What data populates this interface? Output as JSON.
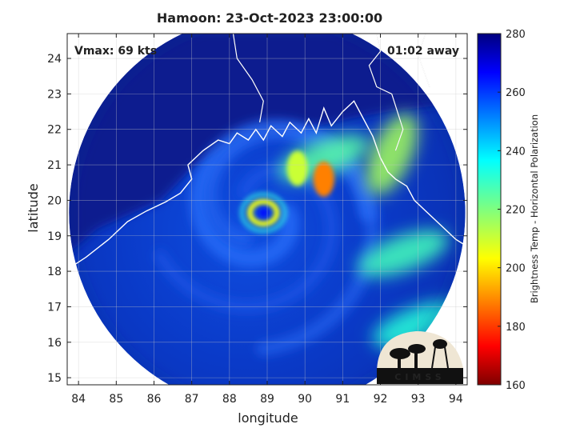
{
  "chart_data": {
    "type": "heatmap",
    "title": "Hamoon: 23-Oct-2023 23:00:00",
    "xlabel": "longitude",
    "ylabel": "latitude",
    "xlim": [
      83.7,
      94.3
    ],
    "ylim": [
      14.8,
      24.7
    ],
    "xticks": [
      84,
      85,
      86,
      87,
      88,
      89,
      90,
      91,
      92,
      93,
      94
    ],
    "yticks": [
      15,
      16,
      17,
      18,
      19,
      20,
      21,
      22,
      23,
      24
    ],
    "grid": true,
    "annotations": {
      "vmax": "Vmax: 69 kts",
      "time_away": "01:02 away"
    },
    "storm_center": {
      "lon": 88.9,
      "lat": 19.65
    },
    "scan_circle": {
      "center_lon": 89.0,
      "center_lat": 19.65,
      "radius_deg": 5.25
    },
    "colorbar": {
      "label": "Brightness Temp - Horizontal Polarization",
      "min": 160,
      "max": 280,
      "ticks": [
        160,
        180,
        200,
        220,
        240,
        260,
        280
      ]
    },
    "features": [
      {
        "kind": "warm-core",
        "lon": 88.9,
        "lat": 19.65,
        "temp": 265
      },
      {
        "kind": "eyewall",
        "lon": 88.9,
        "lat": 19.65,
        "temp": 205
      },
      {
        "kind": "convective-cell",
        "lon": 90.5,
        "lat": 20.6,
        "temp": 188
      },
      {
        "kind": "convective-cell",
        "lon": 89.8,
        "lat": 20.9,
        "temp": 210
      },
      {
        "kind": "rainband",
        "lon": 90.5,
        "lat": 21.2,
        "temp": 225
      },
      {
        "kind": "coastal-rain",
        "lon": 92.3,
        "lat": 21.3,
        "temp": 215
      },
      {
        "kind": "rainband",
        "lon": 92.6,
        "lat": 18.5,
        "temp": 228
      },
      {
        "kind": "rainband",
        "lon": 93.0,
        "lat": 16.5,
        "temp": 232
      }
    ],
    "logo": "CIMSS"
  }
}
